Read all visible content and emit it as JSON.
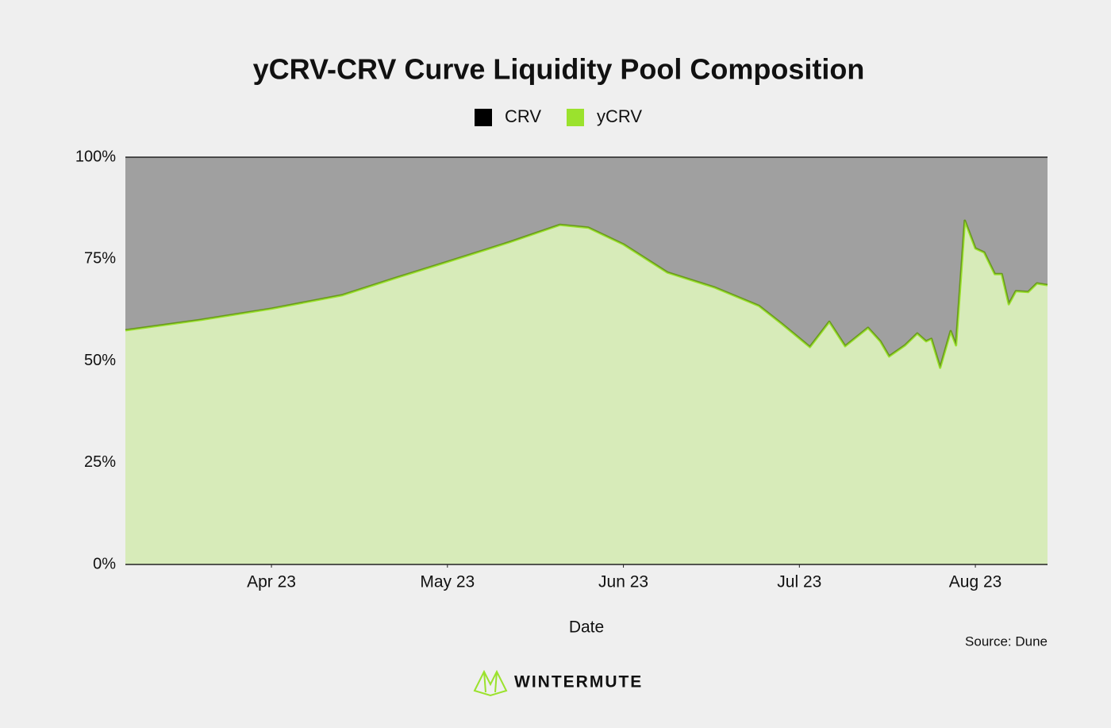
{
  "chart_data": {
    "type": "stacked_area",
    "title": "yCRV-CRV Curve Liquidity Pool Composition",
    "x_label": "Date",
    "source": "Source: Dune",
    "logo": "WINTERMUTE",
    "x": [
      3.17,
      3.59,
      4.0,
      4.4,
      4.71,
      5.0,
      5.35,
      5.64,
      5.8,
      6.0,
      6.25,
      6.52,
      6.77,
      6.9,
      7.06,
      7.17,
      7.26,
      7.39,
      7.46,
      7.51,
      7.6,
      7.67,
      7.72,
      7.75,
      7.8,
      7.86,
      7.89,
      7.94,
      8.0,
      8.05,
      8.11,
      8.15,
      8.19,
      8.23,
      8.3,
      8.35,
      8.41
    ],
    "series": [
      {
        "name": "yCRV",
        "color": "#9be22d",
        "values": [
          57.5,
          60.0,
          62.8,
          66.1,
          70.4,
          74.3,
          79.1,
          83.4,
          82.7,
          78.6,
          71.7,
          68.0,
          63.5,
          59.1,
          53.4,
          59.6,
          53.6,
          58.1,
          54.8,
          51.1,
          53.8,
          56.7,
          54.8,
          55.4,
          48.3,
          57.3,
          53.8,
          84.4,
          77.6,
          76.6,
          71.3,
          71.3,
          63.9,
          67.1,
          66.9,
          69.0,
          68.6
        ]
      },
      {
        "name": "CRV",
        "color": "#000000",
        "values": [
          42.5,
          40.0,
          37.2,
          33.9,
          29.6,
          25.7,
          20.9,
          16.6,
          17.3,
          21.4,
          28.3,
          32.0,
          36.5,
          40.9,
          46.6,
          40.4,
          46.4,
          41.9,
          45.2,
          48.9,
          46.2,
          43.3,
          45.2,
          44.6,
          51.7,
          42.7,
          46.2,
          15.6,
          22.4,
          23.4,
          28.7,
          28.7,
          36.1,
          32.9,
          33.1,
          31.0,
          31.4
        ]
      }
    ],
    "legend_order": [
      "CRV",
      "yCRV"
    ],
    "xlim": [
      3.17,
      8.41
    ],
    "xticks": [
      {
        "value": 4,
        "label": "Apr 23"
      },
      {
        "value": 5,
        "label": "May 23"
      },
      {
        "value": 6,
        "label": "Jun 23"
      },
      {
        "value": 7,
        "label": "Jul 23"
      },
      {
        "value": 8,
        "label": "Aug 23"
      }
    ],
    "ylim": [
      0,
      100
    ],
    "yticks": [
      {
        "value": 0,
        "label": "0%"
      },
      {
        "value": 25,
        "label": "25%"
      },
      {
        "value": 50,
        "label": "50%"
      },
      {
        "value": 75,
        "label": "75%"
      },
      {
        "value": 100,
        "label": "100%"
      }
    ],
    "grid": false,
    "legend": "top"
  }
}
